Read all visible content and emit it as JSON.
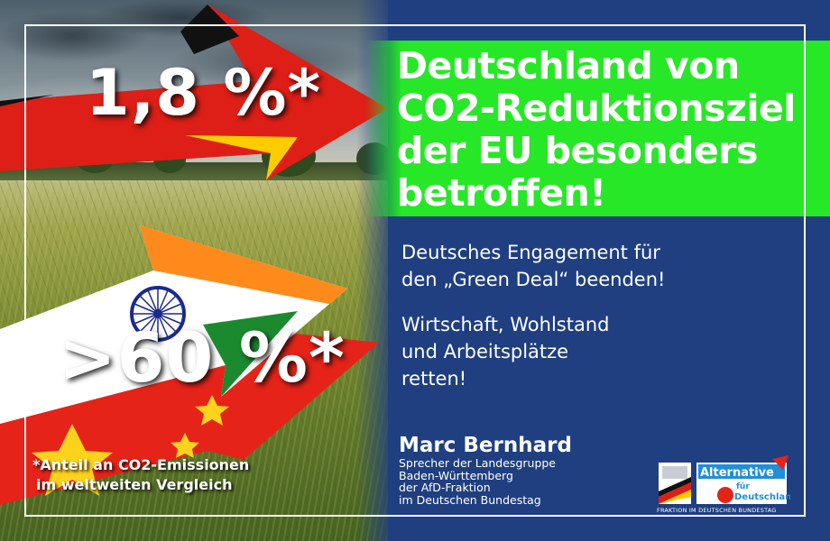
{
  "headline": {
    "lines": [
      "Deutschland von",
      "CO2-Reduktionsziel",
      "der EU besonders",
      "betroffen!"
    ]
  },
  "stats": {
    "germany": "1,8 %*",
    "world": ">60 %*"
  },
  "footnote": {
    "lines": [
      "*Anteil an CO2-Emissionen",
      "im weltweiten Vergleich"
    ]
  },
  "subtext": {
    "block1": [
      "Deutsches Engagement für",
      "den „Green Deal“ beenden!"
    ],
    "block2": [
      "Wirtschaft, Wohlstand",
      "und Arbeitsplätze",
      "retten!"
    ]
  },
  "author": {
    "name": "Marc Bernhard",
    "role": [
      "Sprecher der Landesgruppe",
      "Baden-Württemberg",
      "der AfD-Fraktion",
      "im Deutschen Bundestag"
    ]
  },
  "logo": {
    "word1": "Alternative",
    "word2": "für",
    "word3": "Deutschland",
    "caption": "FRAKTION IM DEUTSCHEN BUNDESTAG"
  },
  "colors": {
    "blue": "#1f3f80",
    "green": "#26e826",
    "de_black": "#111111",
    "de_red": "#dd1f17",
    "de_gold": "#ffcc00",
    "in_saffron": "#ff8a1c",
    "in_green": "#1b8a2f",
    "in_chakra": "#1a2a8c",
    "cn_red": "#e52319",
    "cn_yellow": "#ffd21c"
  }
}
